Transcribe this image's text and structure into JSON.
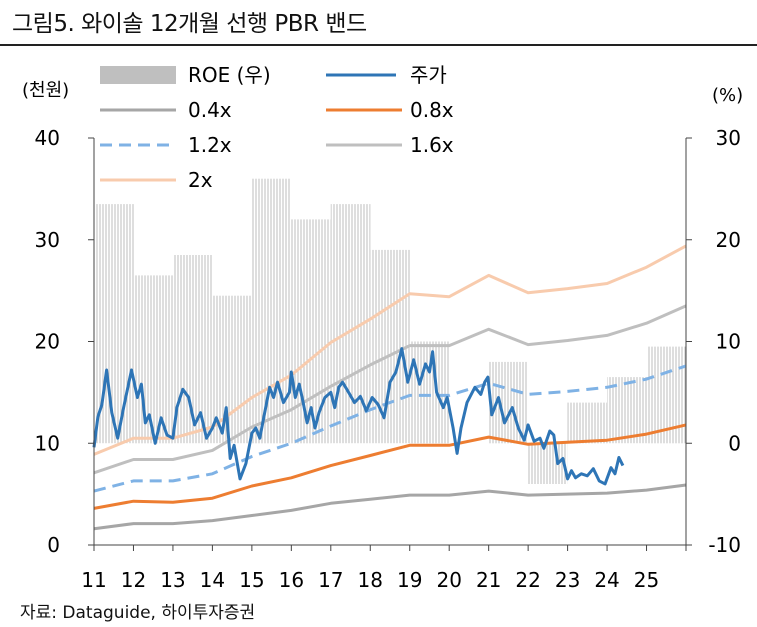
{
  "figure": {
    "title": "그림5. 와이솔 12개월 선행 PBR 밴드",
    "source": "자료: Dataguide, 하이투자증권"
  },
  "chart_data": {
    "type": "line",
    "title": "와이솔 12개월 선행 PBR 밴드",
    "y_left": {
      "label": "(천원)",
      "ticks": [
        "0",
        "10",
        "20",
        "30",
        "40"
      ],
      "range": [
        0,
        40
      ]
    },
    "y_right": {
      "label": "(%)",
      "ticks": [
        "-10",
        "0",
        "10",
        "20",
        "30"
      ],
      "range": [
        -10,
        30
      ]
    },
    "x_ticks": [
      "11",
      "12",
      "13",
      "14",
      "15",
      "16",
      "17",
      "18",
      "19",
      "20",
      "21",
      "22",
      "23",
      "24",
      "25"
    ],
    "x_range": [
      11,
      26
    ],
    "legend": [
      "ROE (우)",
      "주가",
      "0.4x",
      "0.8x",
      "1.2x",
      "1.6x",
      "2x"
    ],
    "roe": [
      {
        "from": 11.0,
        "to": 12.0,
        "value": 23.5
      },
      {
        "from": 12.0,
        "to": 13.0,
        "value": 16.5
      },
      {
        "from": 13.0,
        "to": 14.0,
        "value": 18.5
      },
      {
        "from": 14.0,
        "to": 15.0,
        "value": 14.5
      },
      {
        "from": 15.0,
        "to": 16.0,
        "value": 26.0
      },
      {
        "from": 16.0,
        "to": 17.0,
        "value": 22.0
      },
      {
        "from": 17.0,
        "to": 18.0,
        "value": 23.5
      },
      {
        "from": 18.0,
        "to": 19.0,
        "value": 19.0
      },
      {
        "from": 19.0,
        "to": 20.0,
        "value": 10.0
      },
      {
        "from": 21.0,
        "to": 22.0,
        "value": 8.0
      },
      {
        "from": 22.0,
        "to": 23.0,
        "value": -4.0
      },
      {
        "from": 23.0,
        "to": 24.0,
        "value": 4.0
      },
      {
        "from": 24.0,
        "to": 25.0,
        "value": 6.5
      },
      {
        "from": 25.0,
        "to": 26.0,
        "value": 9.5
      }
    ],
    "bands": [
      {
        "name": "0.4x",
        "color": "#a6a6a6",
        "dash": "",
        "points": [
          [
            11,
            1.6
          ],
          [
            12,
            2.1
          ],
          [
            13,
            2.1
          ],
          [
            14,
            2.4
          ],
          [
            15,
            2.9
          ],
          [
            16,
            3.4
          ],
          [
            17,
            4.1
          ],
          [
            18,
            4.5
          ],
          [
            19,
            4.9
          ],
          [
            20,
            4.9
          ],
          [
            21,
            5.3
          ],
          [
            22,
            4.9
          ],
          [
            23,
            5.0
          ],
          [
            24,
            5.1
          ],
          [
            25,
            5.4
          ],
          [
            26,
            5.9
          ]
        ]
      },
      {
        "name": "0.8x",
        "color": "#ed7d31",
        "dash": "",
        "points": [
          [
            11,
            3.6
          ],
          [
            12,
            4.3
          ],
          [
            13,
            4.2
          ],
          [
            14,
            4.6
          ],
          [
            15,
            5.8
          ],
          [
            16,
            6.6
          ],
          [
            17,
            7.8
          ],
          [
            18,
            8.8
          ],
          [
            19,
            9.8
          ],
          [
            20,
            9.8
          ],
          [
            21,
            10.6
          ],
          [
            22,
            9.9
          ],
          [
            23,
            10.1
          ],
          [
            24,
            10.3
          ],
          [
            25,
            10.9
          ],
          [
            26,
            11.8
          ]
        ]
      },
      {
        "name": "1.2x",
        "color": "#7fb2e5",
        "dash": "12 7",
        "points": [
          [
            11,
            5.3
          ],
          [
            12,
            6.3
          ],
          [
            13,
            6.3
          ],
          [
            14,
            7.0
          ],
          [
            15,
            8.7
          ],
          [
            16,
            10.0
          ],
          [
            17,
            11.7
          ],
          [
            18,
            13.3
          ],
          [
            19,
            14.7
          ],
          [
            20,
            14.7
          ],
          [
            21,
            15.9
          ],
          [
            22,
            14.8
          ],
          [
            23,
            15.1
          ],
          [
            24,
            15.5
          ],
          [
            25,
            16.3
          ],
          [
            26,
            17.6
          ]
        ]
      },
      {
        "name": "1.6x",
        "color": "#bfbfbf",
        "dash": "",
        "points": [
          [
            11,
            7.1
          ],
          [
            12,
            8.4
          ],
          [
            13,
            8.4
          ],
          [
            14,
            9.3
          ],
          [
            15,
            11.6
          ],
          [
            16,
            13.3
          ],
          [
            17,
            15.6
          ],
          [
            18,
            17.7
          ],
          [
            19,
            19.6
          ],
          [
            20,
            19.6
          ],
          [
            21,
            21.2
          ],
          [
            22,
            19.7
          ],
          [
            23,
            20.1
          ],
          [
            24,
            20.6
          ],
          [
            25,
            21.8
          ],
          [
            26,
            23.5
          ]
        ]
      },
      {
        "name": "2x",
        "color": "#f8cbad",
        "dash": "",
        "points": [
          [
            11,
            8.9
          ],
          [
            12,
            10.5
          ],
          [
            13,
            10.5
          ],
          [
            14,
            11.6
          ],
          [
            15,
            14.5
          ],
          [
            16,
            16.7
          ],
          [
            17,
            19.9
          ],
          [
            18,
            22.2
          ],
          [
            19,
            24.7
          ],
          [
            20,
            24.4
          ],
          [
            21,
            26.5
          ],
          [
            22,
            24.8
          ],
          [
            23,
            25.2
          ],
          [
            24,
            25.7
          ],
          [
            25,
            27.3
          ],
          [
            26,
            29.4
          ]
        ]
      }
    ],
    "price": {
      "name": "주가",
      "color": "#2e75b6",
      "points": [
        [
          11.0,
          9.6
        ],
        [
          11.1,
          12.6
        ],
        [
          11.2,
          13.8
        ],
        [
          11.32,
          17.2
        ],
        [
          11.45,
          13.0
        ],
        [
          11.6,
          10.5
        ],
        [
          11.75,
          13.5
        ],
        [
          11.95,
          17.2
        ],
        [
          12.1,
          14.5
        ],
        [
          12.2,
          15.8
        ],
        [
          12.3,
          12.0
        ],
        [
          12.4,
          12.8
        ],
        [
          12.55,
          10.0
        ],
        [
          12.7,
          12.5
        ],
        [
          12.85,
          10.8
        ],
        [
          13.0,
          10.5
        ],
        [
          13.1,
          13.5
        ],
        [
          13.25,
          15.3
        ],
        [
          13.4,
          14.5
        ],
        [
          13.55,
          11.8
        ],
        [
          13.7,
          13.0
        ],
        [
          13.85,
          10.5
        ],
        [
          14.0,
          11.5
        ],
        [
          14.1,
          12.5
        ],
        [
          14.25,
          11.0
        ],
        [
          14.35,
          13.5
        ],
        [
          14.45,
          8.5
        ],
        [
          14.55,
          9.8
        ],
        [
          14.7,
          6.5
        ],
        [
          14.85,
          8.0
        ],
        [
          15.0,
          11.0
        ],
        [
          15.1,
          11.5
        ],
        [
          15.2,
          10.5
        ],
        [
          15.3,
          12.5
        ],
        [
          15.45,
          15.5
        ],
        [
          15.55,
          14.5
        ],
        [
          15.65,
          16.0
        ],
        [
          15.8,
          14.0
        ],
        [
          15.95,
          15.0
        ],
        [
          16.0,
          17.0
        ],
        [
          16.1,
          14.5
        ],
        [
          16.2,
          15.8
        ],
        [
          16.3,
          14.0
        ],
        [
          16.4,
          12.0
        ],
        [
          16.5,
          13.5
        ],
        [
          16.6,
          11.5
        ],
        [
          16.7,
          13.0
        ],
        [
          16.85,
          14.5
        ],
        [
          17.0,
          15.0
        ],
        [
          17.1,
          13.5
        ],
        [
          17.2,
          15.5
        ],
        [
          17.3,
          16.0
        ],
        [
          17.45,
          15.0
        ],
        [
          17.6,
          14.0
        ],
        [
          17.75,
          14.6
        ],
        [
          17.9,
          13.2
        ],
        [
          18.05,
          14.5
        ],
        [
          18.2,
          13.8
        ],
        [
          18.35,
          12.5
        ],
        [
          18.5,
          16.0
        ],
        [
          18.65,
          17.0
        ],
        [
          18.8,
          19.3
        ],
        [
          18.95,
          16.0
        ],
        [
          19.1,
          18.2
        ],
        [
          19.25,
          15.8
        ],
        [
          19.4,
          17.8
        ],
        [
          19.5,
          17.0
        ],
        [
          19.58,
          19.0
        ],
        [
          19.68,
          15.0
        ],
        [
          19.85,
          13.5
        ],
        [
          19.95,
          14.5
        ],
        [
          20.1,
          11.5
        ],
        [
          20.2,
          9.0
        ],
        [
          20.3,
          11.5
        ],
        [
          20.45,
          14.0
        ],
        [
          20.65,
          15.5
        ],
        [
          20.8,
          14.8
        ],
        [
          20.9,
          16.0
        ],
        [
          20.98,
          16.5
        ],
        [
          21.08,
          12.8
        ],
        [
          21.25,
          14.5
        ],
        [
          21.4,
          12.0
        ],
        [
          21.6,
          13.5
        ],
        [
          21.75,
          11.5
        ],
        [
          21.9,
          10.3
        ],
        [
          22.0,
          11.8
        ],
        [
          22.15,
          10.2
        ],
        [
          22.3,
          10.5
        ],
        [
          22.4,
          9.5
        ],
        [
          22.55,
          11.2
        ],
        [
          22.65,
          10.8
        ],
        [
          22.75,
          8.0
        ],
        [
          22.88,
          8.5
        ],
        [
          23.0,
          6.5
        ],
        [
          23.1,
          7.3
        ],
        [
          23.2,
          6.6
        ],
        [
          23.35,
          7.0
        ],
        [
          23.5,
          6.8
        ],
        [
          23.65,
          7.5
        ],
        [
          23.8,
          6.3
        ],
        [
          23.95,
          6.0
        ],
        [
          24.1,
          7.6
        ],
        [
          24.2,
          7.0
        ],
        [
          24.3,
          8.6
        ],
        [
          24.4,
          7.8
        ]
      ]
    }
  }
}
